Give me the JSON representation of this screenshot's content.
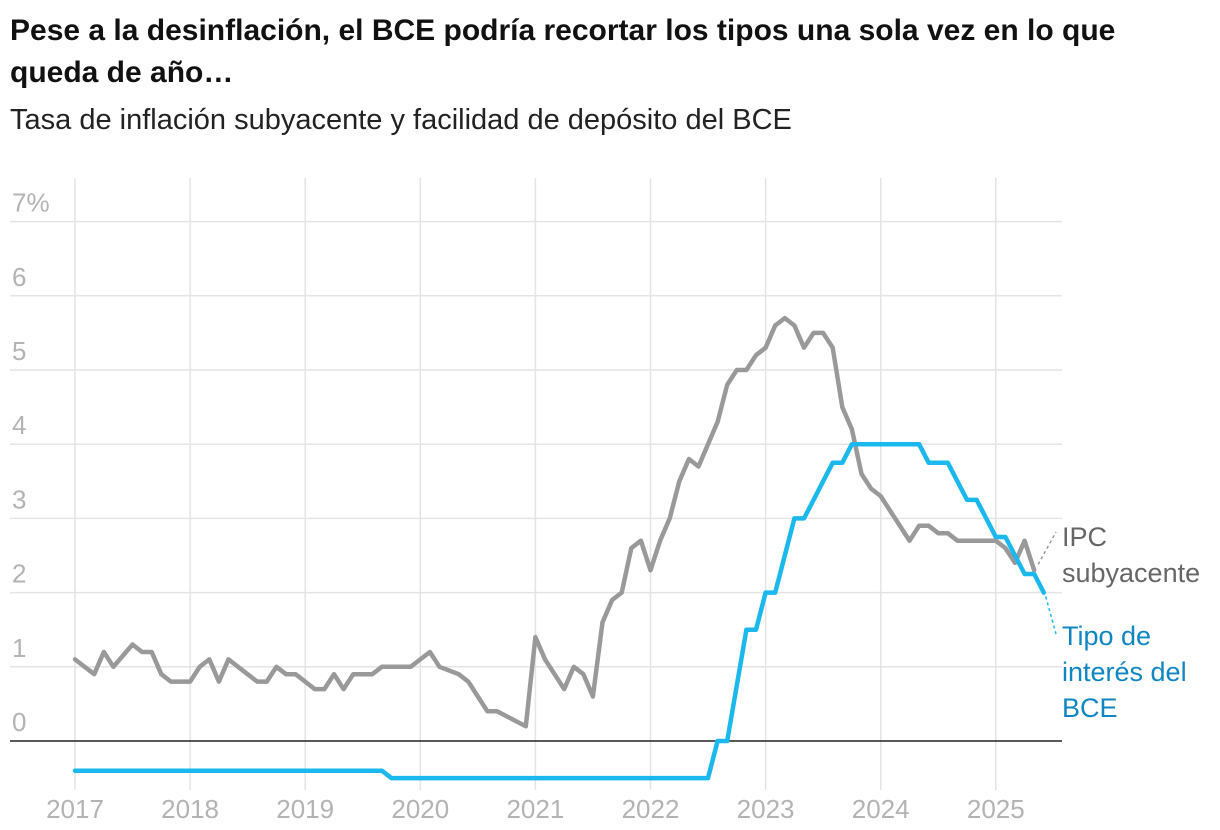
{
  "title": "Pese a la desinflación, el BCE podría recortar los tipos una sola vez en lo que queda de año…",
  "subtitle": "Tasa de inflación subyacente y facilidad de depósito del BCE",
  "colors": {
    "core": "#999999",
    "rate": "#1ab8ec",
    "rate_label": "#0f86c2",
    "core_label": "#666666",
    "grid": "#e4e4e4",
    "tick": "#b3b3b3",
    "zero": "#222222"
  },
  "chart_data": {
    "type": "line",
    "title": "Pese a la desinflación, el BCE podría recortar los tipos una sola vez en lo que queda de año…",
    "subtitle": "Tasa de inflación subyacente y facilidad de depósito del BCE",
    "xlabel": "",
    "ylabel": "",
    "x_ticks": [
      "2017",
      "2018",
      "2019",
      "2020",
      "2021",
      "2022",
      "2023",
      "2024",
      "2025"
    ],
    "y_ticks": [
      "0",
      "1",
      "2",
      "3",
      "4",
      "5",
      "6",
      "7%"
    ],
    "xlim": [
      "2016-12",
      "2025-07"
    ],
    "ylim": [
      -0.5,
      7.6
    ],
    "grid": true,
    "series": [
      {
        "name": "IPC subyacente",
        "label_lines": [
          "IPC",
          "subyacente"
        ],
        "points": [
          [
            "2017-01",
            1.1
          ],
          [
            "2017-03",
            0.9
          ],
          [
            "2017-04",
            1.2
          ],
          [
            "2017-05",
            1.0
          ],
          [
            "2017-07",
            1.3
          ],
          [
            "2017-08",
            1.2
          ],
          [
            "2017-09",
            1.2
          ],
          [
            "2017-10",
            0.9
          ],
          [
            "2017-11",
            0.8
          ],
          [
            "2018-01",
            0.8
          ],
          [
            "2018-02",
            1.0
          ],
          [
            "2018-03",
            1.1
          ],
          [
            "2018-04",
            0.8
          ],
          [
            "2018-05",
            1.1
          ],
          [
            "2018-07",
            0.9
          ],
          [
            "2018-08",
            0.8
          ],
          [
            "2018-09",
            0.8
          ],
          [
            "2018-10",
            1.0
          ],
          [
            "2018-11",
            0.9
          ],
          [
            "2018-12",
            0.9
          ],
          [
            "2019-02",
            0.7
          ],
          [
            "2019-03",
            0.7
          ],
          [
            "2019-04",
            0.9
          ],
          [
            "2019-05",
            0.7
          ],
          [
            "2019-06",
            0.9
          ],
          [
            "2019-08",
            0.9
          ],
          [
            "2019-09",
            1.0
          ],
          [
            "2019-12",
            1.0
          ],
          [
            "2020-01",
            1.1
          ],
          [
            "2020-02",
            1.2
          ],
          [
            "2020-03",
            1.0
          ],
          [
            "2020-05",
            0.9
          ],
          [
            "2020-06",
            0.8
          ],
          [
            "2020-07",
            0.6
          ],
          [
            "2020-08",
            0.4
          ],
          [
            "2020-09",
            0.4
          ],
          [
            "2020-12",
            0.2
          ],
          [
            "2021-01",
            1.4
          ],
          [
            "2021-02",
            1.1
          ],
          [
            "2021-03",
            0.9
          ],
          [
            "2021-04",
            0.7
          ],
          [
            "2021-05",
            1.0
          ],
          [
            "2021-06",
            0.9
          ],
          [
            "2021-07",
            0.6
          ],
          [
            "2021-08",
            1.6
          ],
          [
            "2021-09",
            1.9
          ],
          [
            "2021-10",
            2.0
          ],
          [
            "2021-11",
            2.6
          ],
          [
            "2021-12",
            2.7
          ],
          [
            "2022-01",
            2.3
          ],
          [
            "2022-02",
            2.7
          ],
          [
            "2022-03",
            3.0
          ],
          [
            "2022-04",
            3.5
          ],
          [
            "2022-05",
            3.8
          ],
          [
            "2022-06",
            3.7
          ],
          [
            "2022-07",
            4.0
          ],
          [
            "2022-08",
            4.3
          ],
          [
            "2022-09",
            4.8
          ],
          [
            "2022-10",
            5.0
          ],
          [
            "2022-11",
            5.0
          ],
          [
            "2022-12",
            5.2
          ],
          [
            "2023-01",
            5.3
          ],
          [
            "2023-02",
            5.6
          ],
          [
            "2023-03",
            5.7
          ],
          [
            "2023-04",
            5.6
          ],
          [
            "2023-05",
            5.3
          ],
          [
            "2023-06",
            5.5
          ],
          [
            "2023-07",
            5.5
          ],
          [
            "2023-08",
            5.3
          ],
          [
            "2023-09",
            4.5
          ],
          [
            "2023-10",
            4.2
          ],
          [
            "2023-11",
            3.6
          ],
          [
            "2023-12",
            3.4
          ],
          [
            "2024-01",
            3.3
          ],
          [
            "2024-02",
            3.1
          ],
          [
            "2024-03",
            2.9
          ],
          [
            "2024-04",
            2.7
          ],
          [
            "2024-05",
            2.9
          ],
          [
            "2024-06",
            2.9
          ],
          [
            "2024-07",
            2.8
          ],
          [
            "2024-08",
            2.8
          ],
          [
            "2024-09",
            2.7
          ],
          [
            "2024-10",
            2.7
          ],
          [
            "2024-11",
            2.7
          ],
          [
            "2024-12",
            2.7
          ],
          [
            "2025-01",
            2.7
          ],
          [
            "2025-02",
            2.6
          ],
          [
            "2025-03",
            2.4
          ],
          [
            "2025-04",
            2.7
          ],
          [
            "2025-05",
            2.3
          ]
        ]
      },
      {
        "name": "Tipo de interés del BCE",
        "label_lines": [
          "Tipo de",
          "interés del",
          "BCE"
        ],
        "points": [
          [
            "2017-01",
            -0.4
          ],
          [
            "2019-09",
            -0.4
          ],
          [
            "2019-10",
            -0.5
          ],
          [
            "2022-07",
            -0.5
          ],
          [
            "2022-08",
            0.0
          ],
          [
            "2022-09",
            0.0
          ],
          [
            "2022-10",
            0.75
          ],
          [
            "2022-11",
            1.5
          ],
          [
            "2022-12",
            1.5
          ],
          [
            "2023-01",
            2.0
          ],
          [
            "2023-02",
            2.0
          ],
          [
            "2023-03",
            2.5
          ],
          [
            "2023-04",
            3.0
          ],
          [
            "2023-05",
            3.0
          ],
          [
            "2023-06",
            3.25
          ],
          [
            "2023-07",
            3.5
          ],
          [
            "2023-08",
            3.75
          ],
          [
            "2023-09",
            3.75
          ],
          [
            "2023-10",
            4.0
          ],
          [
            "2024-05",
            4.0
          ],
          [
            "2024-06",
            3.75
          ],
          [
            "2024-08",
            3.75
          ],
          [
            "2024-09",
            3.5
          ],
          [
            "2024-10",
            3.25
          ],
          [
            "2024-11",
            3.25
          ],
          [
            "2024-12",
            3.0
          ],
          [
            "2025-01",
            2.75
          ],
          [
            "2025-02",
            2.75
          ],
          [
            "2025-03",
            2.5
          ],
          [
            "2025-04",
            2.25
          ],
          [
            "2025-05",
            2.25
          ],
          [
            "2025-06",
            2.0
          ]
        ]
      }
    ]
  }
}
